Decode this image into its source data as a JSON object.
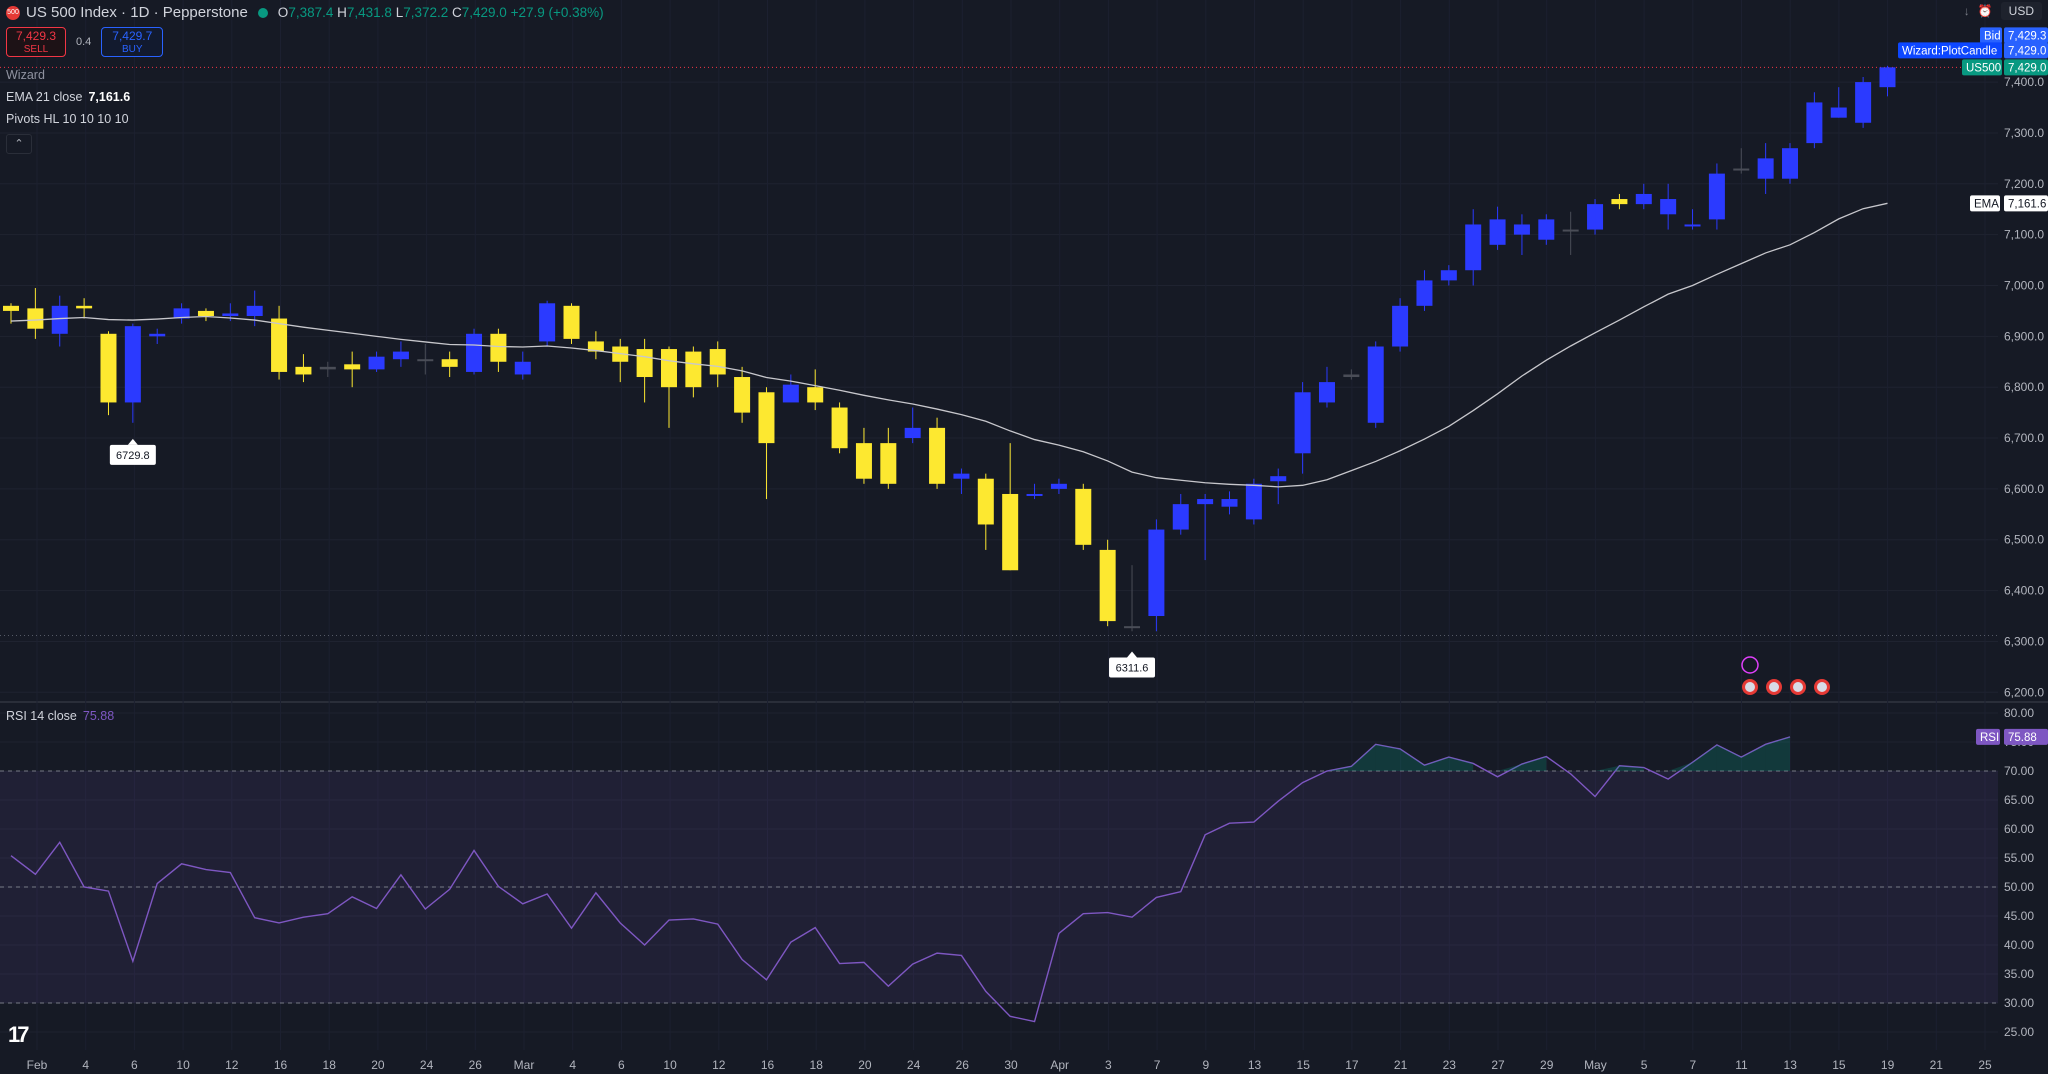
{
  "header": {
    "symbol_badge": "500",
    "title": "US 500 Index · 1D · Pepperstone",
    "o_label": "O",
    "o": "7,387.4",
    "h_label": "H",
    "h": "7,431.8",
    "l_label": "L",
    "l": "7,372.2",
    "c_label": "C",
    "c": "7,429.0",
    "change": "+27.9 (+0.38%)"
  },
  "trade": {
    "sell_price": "7,429.3",
    "sell_label": "SELL",
    "spread": "0.4",
    "buy_price": "7,429.7",
    "buy_label": "BUY"
  },
  "indicators": {
    "wizard": "Wizard",
    "ema_label": "EMA 21 close",
    "ema_value": "7,161.6",
    "pivots_label": "Pivots HL 10 10 10 10"
  },
  "rsi_panel": {
    "label": "RSI 14 close",
    "value": "75.88"
  },
  "top_right": {
    "currency": "USD"
  },
  "price_labels": {
    "bid_label": "Bid",
    "bid": "7,429.3",
    "wizard_label": "Wizard:PlotCandle",
    "wizard": "7,429.0",
    "sym_label": "US500",
    "sym": "7,429.0",
    "ema_label": "EMA",
    "ema": "7,161.6",
    "rsi_label": "RSI",
    "rsi": "75.88"
  },
  "colors": {
    "background": "#161a25",
    "bull": "#2b3aff",
    "bear": "#fde830",
    "neutral": "#4a4d57",
    "ema": "#c7c7cc",
    "rsi": "#7e57c2",
    "current_price": "#089981"
  },
  "chart_data": [
    {
      "type": "candlestick",
      "y_axis_ticks": [
        "6,200.0",
        "6,300.0",
        "6,400.0",
        "6,500.0",
        "6,600.0",
        "6,700.0",
        "6,800.0",
        "6,900.0",
        "7,000.0",
        "7,100.0",
        "7,200.0",
        "7,300.0",
        "7,400.0"
      ],
      "ylim": [
        6175,
        7460
      ],
      "x_tick_labels": [
        "Feb",
        "4",
        "6",
        "10",
        "12",
        "16",
        "18",
        "20",
        "24",
        "26",
        "Mar",
        "4",
        "6",
        "10",
        "12",
        "16",
        "18",
        "20",
        "24",
        "26",
        "30",
        "Apr",
        "3",
        "7",
        "9",
        "13",
        "15",
        "17",
        "21",
        "23",
        "27",
        "29",
        "May",
        "5",
        "7",
        "11",
        "13",
        "15",
        "19",
        "21",
        "25"
      ],
      "annotations": [
        {
          "text": "6729.8",
          "value": 6729.8,
          "type": "pivot-low"
        },
        {
          "text": "6311.6",
          "value": 6311.6,
          "type": "pivot-low"
        }
      ],
      "candles": [
        [
          6960,
          6950,
          6925,
          6965
        ],
        [
          6955,
          6915,
          6895,
          6995
        ],
        [
          6905,
          6960,
          6880,
          6980
        ],
        [
          6960,
          6955,
          6935,
          6975
        ],
        [
          6905,
          6770,
          6745,
          6910
        ],
        [
          6770,
          6920,
          6730,
          6925
        ],
        [
          6900,
          6905,
          6885,
          6915
        ],
        [
          6935,
          6955,
          6925,
          6965
        ],
        [
          6950,
          6940,
          6930,
          6955
        ],
        [
          6940,
          6945,
          6930,
          6965
        ],
        [
          6940,
          6960,
          6920,
          6990
        ],
        [
          6935,
          6830,
          6815,
          6960
        ],
        [
          6840,
          6825,
          6810,
          6865
        ],
        [
          6840,
          6835,
          6820,
          6850
        ],
        [
          6845,
          6835,
          6800,
          6870
        ],
        [
          6835,
          6860,
          6830,
          6870
        ],
        [
          6855,
          6870,
          6840,
          6890
        ],
        [
          6855,
          6855,
          6825,
          6885
        ],
        [
          6855,
          6840,
          6820,
          6870
        ],
        [
          6830,
          6905,
          6825,
          6915
        ],
        [
          6905,
          6850,
          6830,
          6915
        ],
        [
          6825,
          6850,
          6815,
          6870
        ],
        [
          6890,
          6965,
          6880,
          6970
        ],
        [
          6960,
          6895,
          6885,
          6965
        ],
        [
          6890,
          6870,
          6855,
          6910
        ],
        [
          6880,
          6850,
          6810,
          6895
        ],
        [
          6875,
          6820,
          6770,
          6895
        ],
        [
          6875,
          6800,
          6720,
          6880
        ],
        [
          6870,
          6800,
          6780,
          6880
        ],
        [
          6875,
          6825,
          6800,
          6890
        ],
        [
          6820,
          6750,
          6730,
          6840
        ],
        [
          6790,
          6690,
          6580,
          6800
        ],
        [
          6770,
          6805,
          6780,
          6825
        ],
        [
          6800,
          6770,
          6755,
          6835
        ],
        [
          6760,
          6680,
          6670,
          6770
        ],
        [
          6690,
          6620,
          6610,
          6720
        ],
        [
          6690,
          6610,
          6600,
          6720
        ],
        [
          6700,
          6720,
          6690,
          6760
        ],
        [
          6720,
          6610,
          6600,
          6740
        ],
        [
          6620,
          6630,
          6590,
          6640
        ],
        [
          6620,
          6530,
          6480,
          6630
        ],
        [
          6590,
          6440,
          6440,
          6690
        ],
        [
          6590,
          6590,
          6580,
          6610
        ],
        [
          6600,
          6610,
          6590,
          6620
        ],
        [
          6600,
          6490,
          6480,
          6610
        ],
        [
          6480,
          6340,
          6330,
          6500
        ],
        [
          6330,
          6330,
          6320,
          6450
        ],
        [
          6350,
          6520,
          6320,
          6540
        ],
        [
          6520,
          6570,
          6510,
          6590
        ],
        [
          6570,
          6580,
          6460,
          6590
        ],
        [
          6565,
          6580,
          6550,
          6595
        ],
        [
          6540,
          6610,
          6530,
          6620
        ],
        [
          6615,
          6625,
          6570,
          6640
        ],
        [
          6670,
          6790,
          6630,
          6810
        ],
        [
          6770,
          6810,
          6760,
          6840
        ],
        [
          6820,
          6825,
          6815,
          6835
        ],
        [
          6730,
          6880,
          6720,
          6890
        ],
        [
          6880,
          6960,
          6870,
          6975
        ],
        [
          6960,
          7010,
          6950,
          7030
        ],
        [
          7010,
          7030,
          7000,
          7040
        ],
        [
          7030,
          7120,
          7000,
          7150
        ],
        [
          7080,
          7130,
          7070,
          7155
        ],
        [
          7100,
          7120,
          7060,
          7140
        ],
        [
          7090,
          7130,
          7080,
          7140
        ],
        [
          7110,
          7110,
          7060,
          7145
        ],
        [
          7110,
          7160,
          7100,
          7170
        ],
        [
          7170,
          7160,
          7150,
          7180
        ],
        [
          7160,
          7180,
          7150,
          7200
        ],
        [
          7140,
          7170,
          7110,
          7200
        ],
        [
          7120,
          7120,
          7110,
          7150
        ],
        [
          7130,
          7220,
          7110,
          7240
        ],
        [
          7230,
          7230,
          7220,
          7270
        ],
        [
          7210,
          7250,
          7180,
          7280
        ],
        [
          7210,
          7270,
          7200,
          7280
        ],
        [
          7280,
          7360,
          7270,
          7380
        ],
        [
          7330,
          7350,
          7330,
          7390
        ],
        [
          7320,
          7400,
          7310,
          7410
        ],
        [
          7390,
          7429,
          7372,
          7432
        ]
      ],
      "ema21": [
        6930,
        6932,
        6935,
        6937,
        6933,
        6932,
        6934,
        6937,
        6939,
        6936,
        6932,
        6925,
        6918,
        6912,
        6906,
        6900,
        6894,
        6889,
        6884,
        6883,
        6880,
        6879,
        6881,
        6877,
        6872,
        6866,
        6860,
        6852,
        6846,
        6841,
        6832,
        6819,
        6812,
        6803,
        6794,
        6784,
        6775,
        6767,
        6757,
        6746,
        6733,
        6714,
        6697,
        6686,
        6673,
        6655,
        6633,
        6622,
        6617,
        6612,
        6609,
        6607,
        6604,
        6607,
        6618,
        6636,
        6654,
        6675,
        6698,
        6723,
        6754,
        6787,
        6822,
        6853,
        6881,
        6907,
        6932,
        6958,
        6983,
        7000,
        7022,
        7043,
        7064,
        7080,
        7104,
        7131,
        7151,
        7161.6
      ]
    },
    {
      "type": "line",
      "name": "RSI 14 close",
      "y_axis_ticks": [
        "25.00",
        "30.00",
        "35.00",
        "40.00",
        "45.00",
        "50.00",
        "55.00",
        "60.00",
        "65.00",
        "70.00",
        "75.00",
        "80.00"
      ],
      "ylim": [
        21.5,
        80.0
      ],
      "bands": [
        30,
        50,
        70
      ],
      "values": [
        55.4,
        52.2,
        57.7,
        50.0,
        49.3,
        37.2,
        50.6,
        54.0,
        53.0,
        52.5,
        44.7,
        43.8,
        44.8,
        45.4,
        48.3,
        46.3,
        52.1,
        46.2,
        49.6,
        56.3,
        50.1,
        47.1,
        48.8,
        42.9,
        49.0,
        43.8,
        40.0,
        44.3,
        44.5,
        43.6,
        37.5,
        34.0,
        40.5,
        43.0,
        36.8,
        37.0,
        32.9,
        36.7,
        38.6,
        38.2,
        32.0,
        27.7,
        26.8,
        42.0,
        45.4,
        45.6,
        44.8,
        48.2,
        49.2,
        59.0,
        61.0,
        61.2,
        64.8,
        68.0,
        70.0,
        70.8,
        74.6,
        73.8,
        71.0,
        72.4,
        71.3,
        69.0,
        71.2,
        72.5,
        69.5,
        65.6,
        70.9,
        70.6,
        68.6,
        71.5,
        74.5,
        72.4,
        74.6,
        75.88
      ]
    }
  ]
}
